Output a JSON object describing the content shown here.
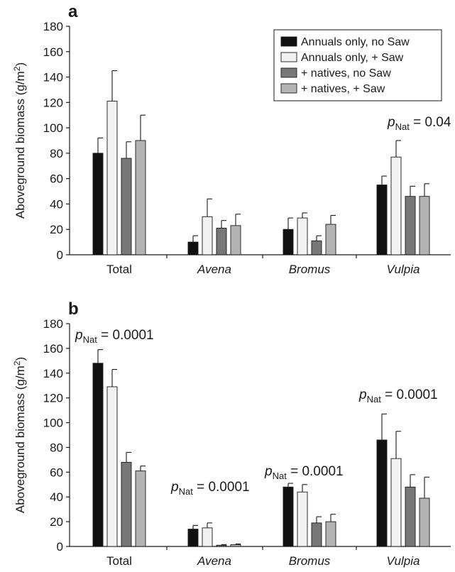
{
  "chart_data": [
    {
      "type": "bar",
      "panel_label": "a",
      "ylabel": "Aboveground biomass (g/m2)",
      "ylabel_parts": {
        "main": "Aboveground biomass (g/m",
        "sup": "2",
        "end": ")"
      },
      "ylim": [
        0,
        180
      ],
      "yticks": [
        "0",
        "20",
        "40",
        "60",
        "80",
        "100",
        "120",
        "140",
        "160",
        "180"
      ],
      "categories": [
        "Total",
        "Avena",
        "Bromus",
        "Vulpia"
      ],
      "categories_italic": [
        false,
        true,
        true,
        true
      ],
      "legend_placement": "top-right",
      "series": [
        {
          "name": "Annuals only, no Saw",
          "color": "#111111",
          "values": [
            80,
            10,
            20,
            55
          ],
          "errors": [
            12,
            5,
            9,
            7
          ]
        },
        {
          "name": "Annuals only, + Saw",
          "color": "#f2f2f2",
          "values": [
            121,
            30,
            29,
            77
          ],
          "errors": [
            24,
            14,
            4,
            13
          ]
        },
        {
          "name": "+ natives, no Saw",
          "color": "#777777",
          "values": [
            76,
            21,
            11,
            46
          ],
          "errors": [
            13,
            6,
            4,
            8
          ]
        },
        {
          "name": "+ natives, + Saw",
          "color": "#b3b3b3",
          "values": [
            90,
            23,
            24,
            46
          ],
          "errors": [
            20,
            9,
            7,
            10
          ]
        }
      ],
      "annotations": [
        {
          "category": "Vulpia",
          "p": "p",
          "sub": "Nat",
          "value": " = 0.04"
        }
      ]
    },
    {
      "type": "bar",
      "panel_label": "b",
      "ylabel": "Aboveground biomass (g/m2)",
      "ylabel_parts": {
        "main": "Aboveground biomass (g/m",
        "sup": "2",
        "end": ")"
      },
      "ylim": [
        0,
        180
      ],
      "yticks": [
        "0",
        "20",
        "40",
        "60",
        "80",
        "100",
        "120",
        "140",
        "160",
        "180"
      ],
      "categories": [
        "Total",
        "Avena",
        "Bromus",
        "Vulpia"
      ],
      "categories_italic": [
        false,
        true,
        true,
        true
      ],
      "series": [
        {
          "name": "Annuals only, no Saw",
          "color": "#111111",
          "values": [
            148,
            14,
            48,
            86
          ],
          "errors": [
            11,
            3,
            3,
            21
          ]
        },
        {
          "name": "Annuals only, + Saw",
          "color": "#f2f2f2",
          "values": [
            129,
            15,
            44,
            71
          ],
          "errors": [
            14,
            4,
            6,
            22
          ]
        },
        {
          "name": "+ natives, no Saw",
          "color": "#777777",
          "values": [
            68,
            1,
            19,
            48
          ],
          "errors": [
            8,
            0.5,
            5,
            10
          ]
        },
        {
          "name": "+ natives, + Saw",
          "color": "#b3b3b3",
          "values": [
            61,
            1.5,
            20,
            39
          ],
          "errors": [
            4,
            0.5,
            6,
            17
          ]
        }
      ],
      "annotations": [
        {
          "category": "Total",
          "p": "p",
          "sub": "Nat",
          "value": " = 0.0001"
        },
        {
          "category": "Avena",
          "p": "p",
          "sub": "Nat",
          "value": " = 0.0001"
        },
        {
          "category": "Bromus",
          "p": "p",
          "sub": "Nat",
          "value": " = 0.0001"
        },
        {
          "category": "Vulpia",
          "p": "p",
          "sub": "Nat",
          "value": " = 0.0001"
        }
      ]
    }
  ]
}
